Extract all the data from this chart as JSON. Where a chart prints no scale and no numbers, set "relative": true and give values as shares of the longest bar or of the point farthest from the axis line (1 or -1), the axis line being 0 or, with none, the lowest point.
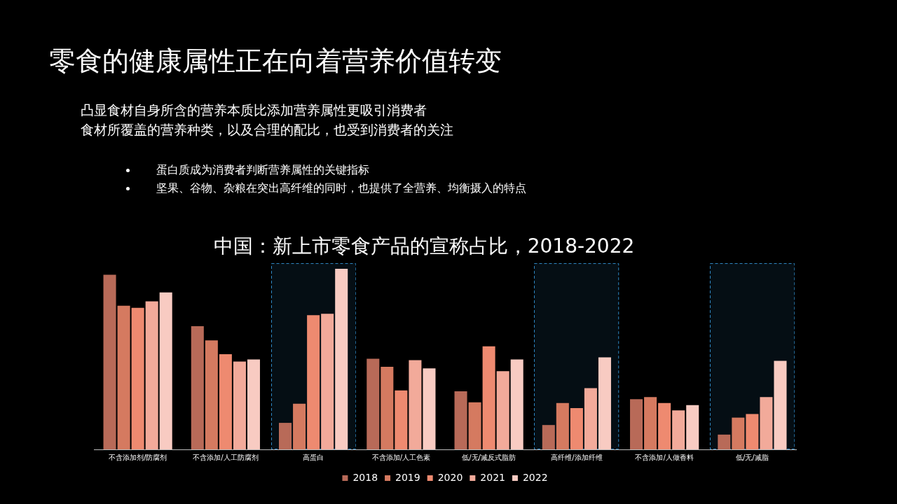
{
  "chart_data": {
    "type": "bar",
    "title": "零食的健康属性正在向着营养价值转变",
    "subtitle": "中国：新上市零食产品的宣称占比，2018-2022",
    "annotations": [
      "凸显食材自身所含的营养本质比添加营养属性更吸引消费者",
      "食材所覆盖的营养种类，以及合理的配比，也受到消费者的关注",
      "蛋白质成为消费者判断营养属性的关键指标",
      "坚果、谷物、杂粮在突出高纤维的同时，也提供了全营养、均衡摄入的特点"
    ],
    "categories": [
      "不含添加剂/防腐剂",
      "不含添加/人工防腐剂",
      "高蛋白",
      "不含添加/人工色素",
      "低/无/减反式脂肪",
      "高纤维/添加纤维",
      "不含添加/人做香料",
      "低/无/减脂"
    ],
    "relative": true,
    "legend": "bottom",
    "series": [
      {
        "name": "2018",
        "color": "#b86a58",
        "values": [
          0.967,
          0.682,
          0.147,
          0.502,
          0.322,
          0.135,
          0.278,
          0.082
        ]
      },
      {
        "name": "2019",
        "color": "#d57a60",
        "values": [
          0.796,
          0.604,
          0.253,
          0.457,
          0.261,
          0.257,
          0.29,
          0.176
        ]
      },
      {
        "name": "2020",
        "color": "#ee8a70",
        "values": [
          0.784,
          0.527,
          0.743,
          0.327,
          0.571,
          0.229,
          0.257,
          0.196
        ]
      },
      {
        "name": "2021",
        "color": "#f2aa9a",
        "values": [
          0.82,
          0.486,
          0.751,
          0.494,
          0.433,
          0.339,
          0.216,
          0.29
        ]
      },
      {
        "name": "2022",
        "color": "#f8cbc2",
        "values": [
          0.869,
          0.498,
          1,
          0.449,
          0.498,
          0.51,
          0.245,
          0.49
        ]
      }
    ],
    "bands": [
      {
        "axis": "x",
        "from": "高蛋白",
        "to": "高蛋白",
        "color": "#2e86c1"
      },
      {
        "axis": "x",
        "from": "高纤维/添加纤维",
        "to": "高纤维/添加纤维",
        "color": "#2e86c1"
      },
      {
        "axis": "x",
        "from": "低/无/减脂",
        "to": "低/无/减脂",
        "color": "#2e86c1"
      }
    ]
  }
}
